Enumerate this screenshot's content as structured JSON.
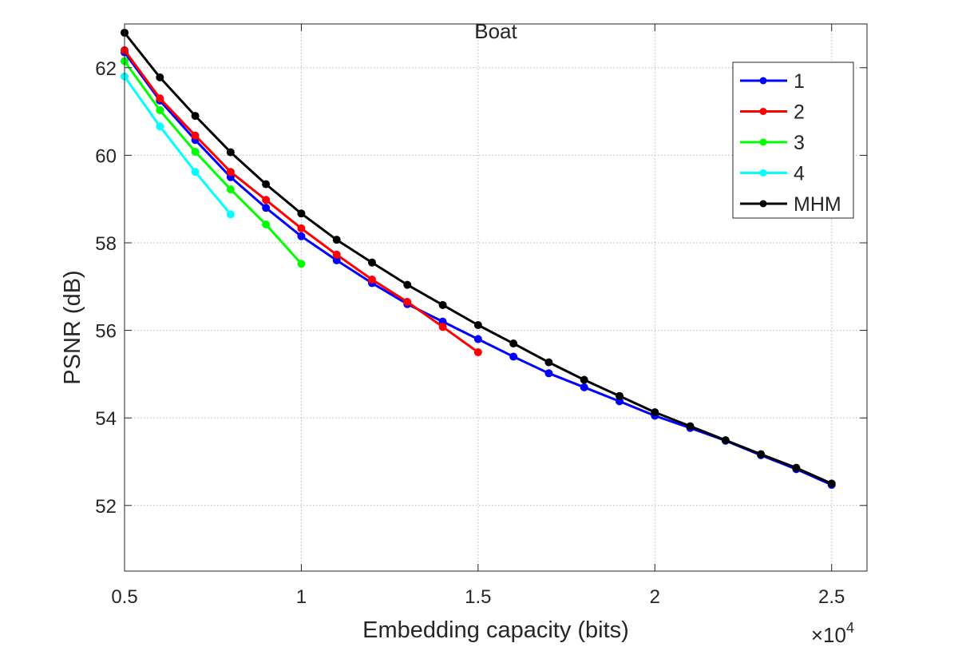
{
  "chart_data": {
    "type": "line",
    "title": "Boat",
    "xlabel": "Embedding capacity (bits)",
    "ylabel": "PSNR (dB)",
    "x_multiplier_base": "×10",
    "x_multiplier_exp": "4",
    "xlim": [
      0.5,
      2.6
    ],
    "ylim": [
      50.5,
      63
    ],
    "xticks": [
      0.5,
      1,
      1.5,
      2,
      2.5
    ],
    "xtick_labels": [
      "0.5",
      "1",
      "1.5",
      "2",
      "2.5"
    ],
    "yticks": [
      52,
      54,
      56,
      58,
      60,
      62
    ],
    "ytick_labels": [
      "52",
      "54",
      "56",
      "58",
      "60",
      "62"
    ],
    "grid": true,
    "legend_position": "top-right",
    "series": [
      {
        "name": "1",
        "color": "#0000ff",
        "x": [
          0.5,
          0.6,
          0.7,
          0.8,
          0.9,
          1.0,
          1.1,
          1.2,
          1.3,
          1.4,
          1.5,
          1.6,
          1.7,
          1.8,
          1.9,
          2.0,
          2.1,
          2.2,
          2.3,
          2.4,
          2.5
        ],
        "y": [
          62.35,
          61.25,
          60.35,
          59.5,
          58.8,
          58.15,
          57.6,
          57.08,
          56.6,
          56.2,
          55.8,
          55.4,
          55.02,
          54.7,
          54.38,
          54.05,
          53.77,
          53.48,
          53.15,
          52.83,
          52.47
        ]
      },
      {
        "name": "2",
        "color": "#ff0000",
        "x": [
          0.5,
          0.6,
          0.7,
          0.8,
          0.9,
          1.0,
          1.1,
          1.2,
          1.3,
          1.4,
          1.5
        ],
        "y": [
          62.4,
          61.3,
          60.45,
          59.62,
          58.98,
          58.33,
          57.73,
          57.16,
          56.65,
          56.08,
          55.5
        ]
      },
      {
        "name": "3",
        "color": "#00ff00",
        "x": [
          0.5,
          0.6,
          0.7,
          0.8,
          0.9,
          1.0
        ],
        "y": [
          62.15,
          61.03,
          60.08,
          59.22,
          58.42,
          57.52
        ]
      },
      {
        "name": "4",
        "color": "#00ffff",
        "x": [
          0.5,
          0.6,
          0.7,
          0.8
        ],
        "y": [
          61.8,
          60.66,
          59.62,
          58.65
        ]
      },
      {
        "name": "MHM",
        "color": "#000000",
        "x": [
          0.5,
          0.6,
          0.7,
          0.8,
          0.9,
          1.0,
          1.1,
          1.2,
          1.3,
          1.4,
          1.5,
          1.6,
          1.7,
          1.8,
          1.9,
          2.0,
          2.1,
          2.2,
          2.3,
          2.4,
          2.5
        ],
        "y": [
          62.8,
          61.78,
          60.9,
          60.07,
          59.34,
          58.67,
          58.07,
          57.55,
          57.04,
          56.58,
          56.12,
          55.7,
          55.27,
          54.87,
          54.5,
          54.13,
          53.81,
          53.49,
          53.17,
          52.86,
          52.5
        ]
      }
    ]
  }
}
